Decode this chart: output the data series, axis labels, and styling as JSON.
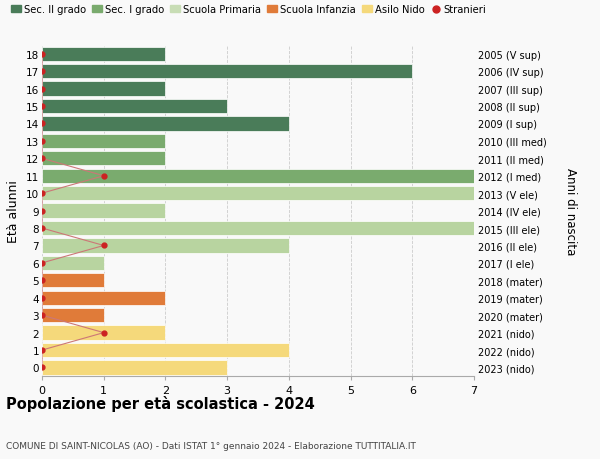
{
  "ages": [
    18,
    17,
    16,
    15,
    14,
    13,
    12,
    11,
    10,
    9,
    8,
    7,
    6,
    5,
    4,
    3,
    2,
    1,
    0
  ],
  "right_labels": [
    "2005 (V sup)",
    "2006 (IV sup)",
    "2007 (III sup)",
    "2008 (II sup)",
    "2009 (I sup)",
    "2010 (III med)",
    "2011 (II med)",
    "2012 (I med)",
    "2013 (V ele)",
    "2014 (IV ele)",
    "2015 (III ele)",
    "2016 (II ele)",
    "2017 (I ele)",
    "2018 (mater)",
    "2019 (mater)",
    "2020 (mater)",
    "2021 (nido)",
    "2022 (nido)",
    "2023 (nido)"
  ],
  "bar_values": [
    2,
    6,
    2,
    3,
    4,
    2,
    2,
    7,
    7,
    2,
    7,
    4,
    1,
    1,
    2,
    1,
    2,
    4,
    3
  ],
  "bar_colors": [
    "#4a7c59",
    "#4a7c59",
    "#4a7c59",
    "#4a7c59",
    "#4a7c59",
    "#7aab6e",
    "#7aab6e",
    "#7aab6e",
    "#b8d4a0",
    "#b8d4a0",
    "#b8d4a0",
    "#b8d4a0",
    "#b8d4a0",
    "#e07b39",
    "#e07b39",
    "#e07b39",
    "#f5d97b",
    "#f5d97b",
    "#f5d97b"
  ],
  "stranieri_values": [
    0,
    0,
    0,
    0,
    0,
    0,
    0,
    1,
    0,
    0,
    0,
    1,
    0,
    0,
    0,
    0,
    1,
    0,
    0
  ],
  "stranieri_color": "#cc2222",
  "stranieri_line_color": "#cc7777",
  "legend_labels": [
    "Sec. II grado",
    "Sec. I grado",
    "Scuola Primaria",
    "Scuola Infanzia",
    "Asilo Nido",
    "Stranieri"
  ],
  "legend_colors": [
    "#4a7c59",
    "#7aab6e",
    "#c8ddb5",
    "#e07b39",
    "#f5d97b",
    "#cc2222"
  ],
  "title": "Popolazione per età scolastica - 2024",
  "subtitle": "COMUNE DI SAINT-NICOLAS (AO) - Dati ISTAT 1° gennaio 2024 - Elaborazione TUTTITALIA.IT",
  "ylabel": "Età alunni",
  "right_ylabel": "Anni di nascita",
  "xlim": [
    0,
    7
  ],
  "background_color": "#f9f9f9",
  "grid_color": "#cccccc"
}
